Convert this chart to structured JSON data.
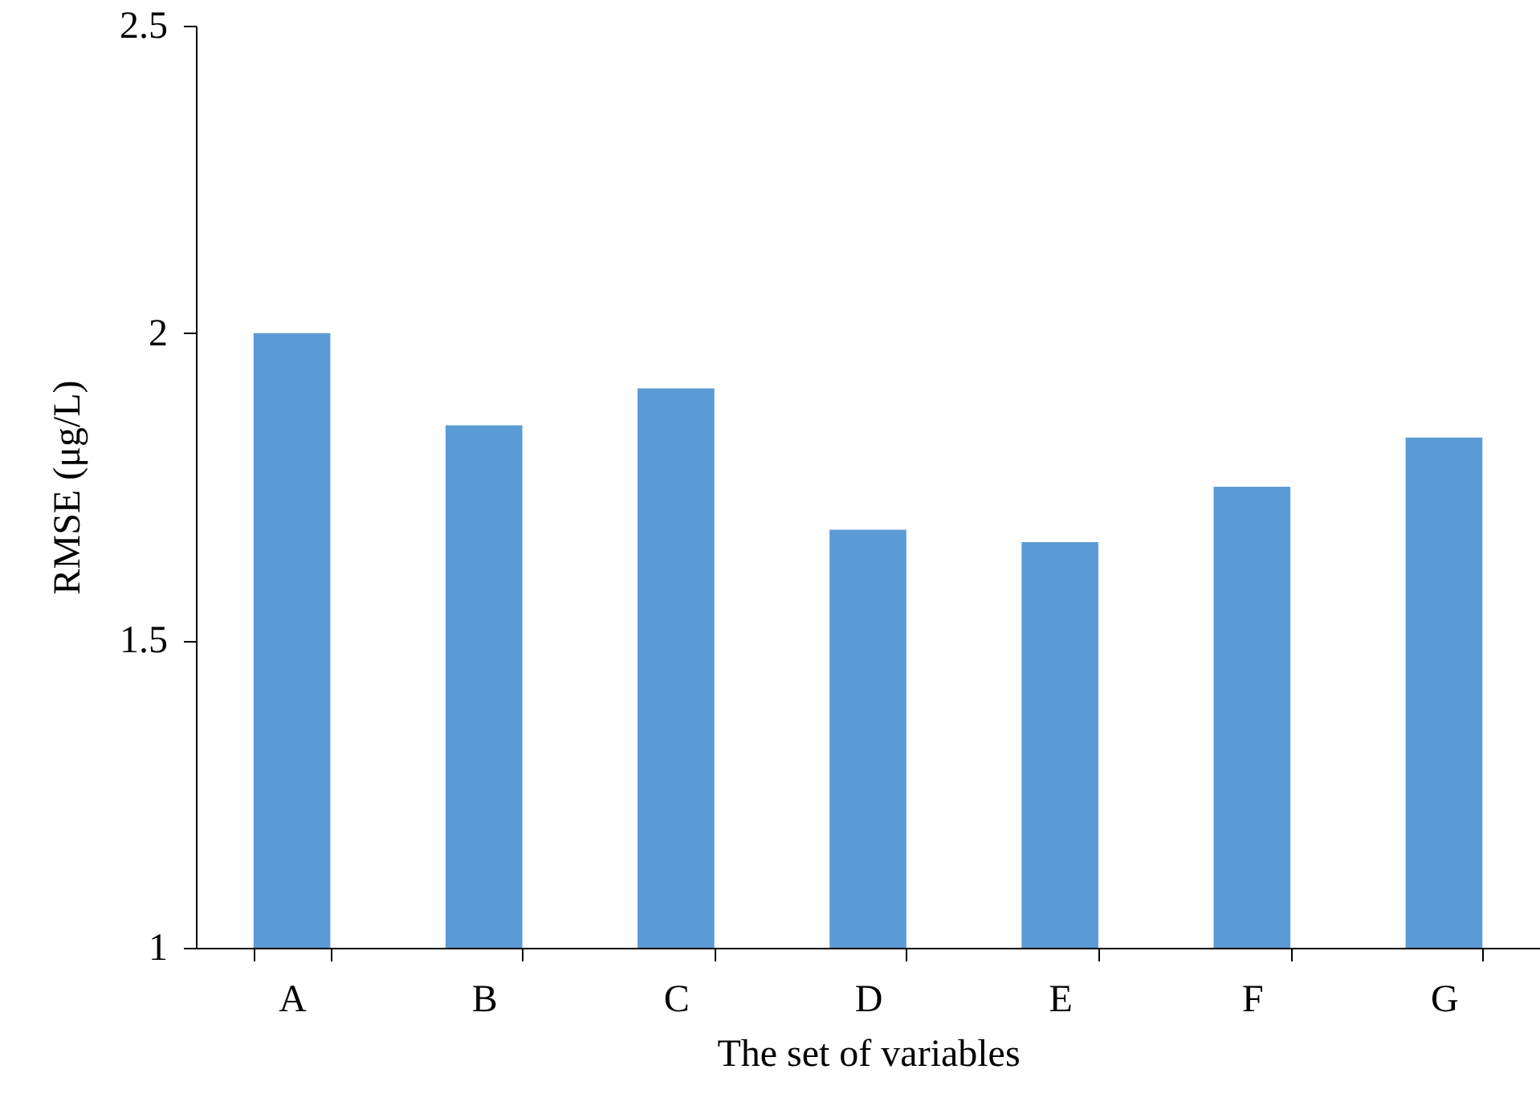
{
  "chart_data": {
    "type": "bar",
    "xlabel": "The set of variables",
    "ylabel": "RMSE (μg/L)",
    "categories": [
      "A",
      "B",
      "C",
      "D",
      "E",
      "F",
      "G"
    ],
    "series": [
      {
        "color": "#5b9bd5",
        "values": [
          2.0,
          1.85,
          1.91,
          1.68,
          1.66,
          1.75,
          1.83
        ]
      }
    ],
    "ylim": [
      1,
      2.5
    ],
    "yticks": [
      1,
      1.5,
      2,
      2.5
    ],
    "grid": false
  }
}
